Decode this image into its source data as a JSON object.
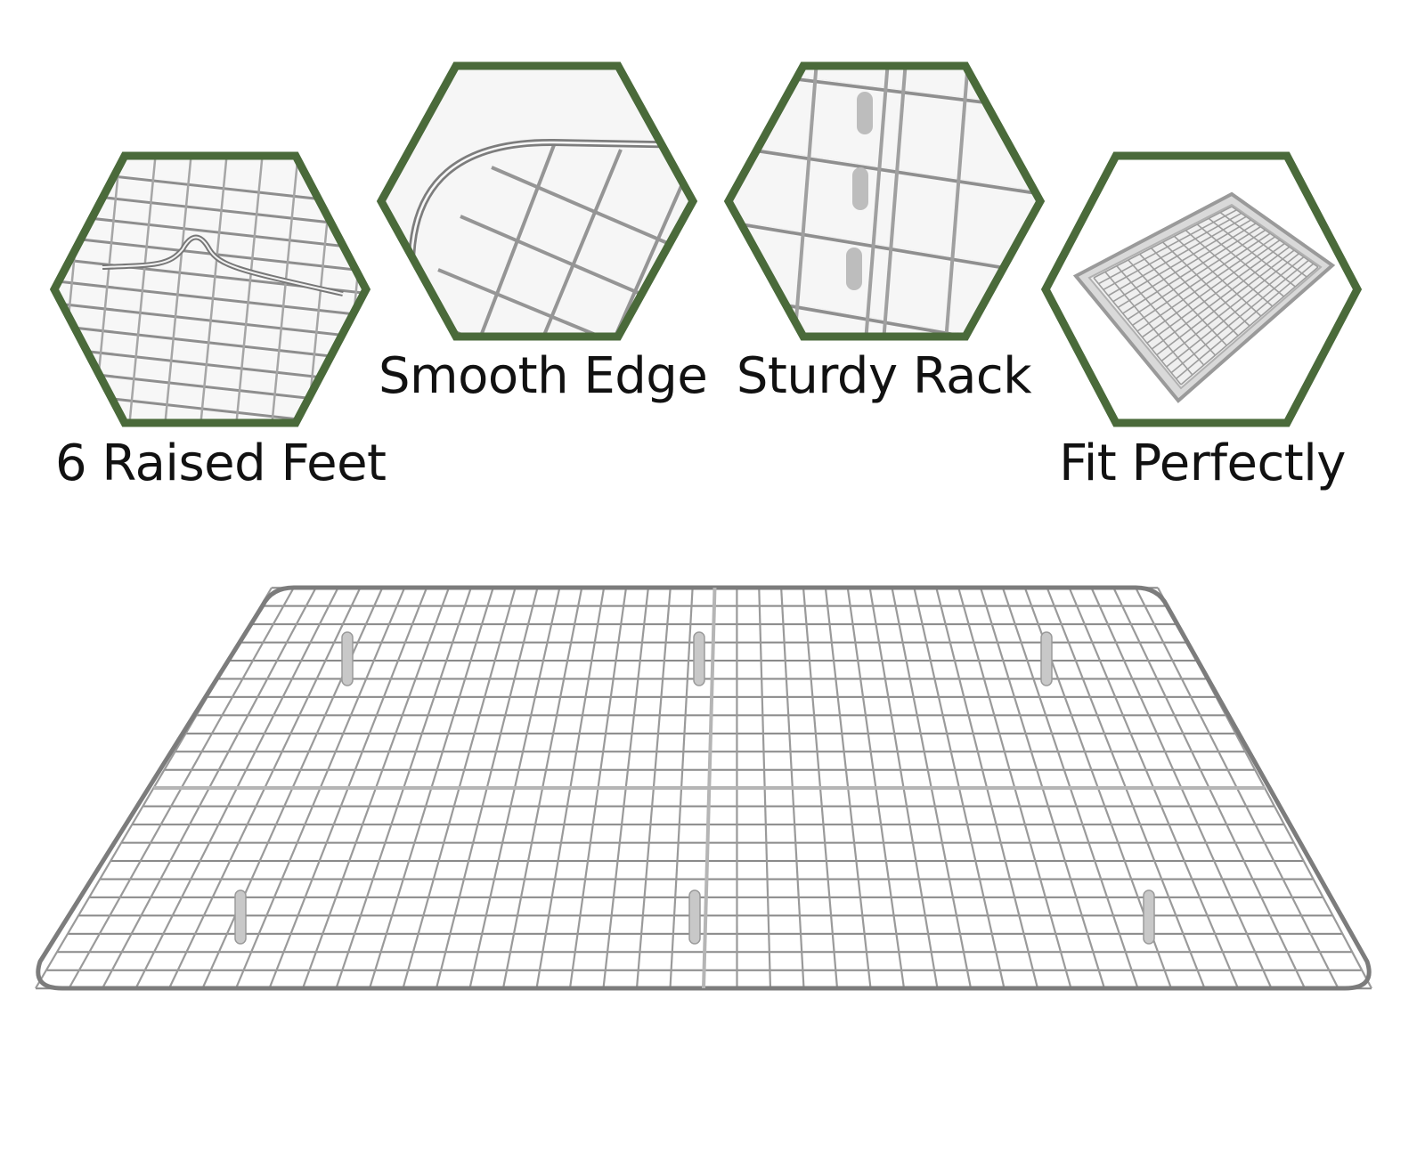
{
  "features": [
    {
      "id": "raised-feet",
      "label": "6 Raised Feet"
    },
    {
      "id": "smooth-edge",
      "label": "Smooth Edge"
    },
    {
      "id": "sturdy-rack",
      "label": "Sturdy Rack"
    },
    {
      "id": "fit-perfectly",
      "label": "Fit Perfectly"
    }
  ],
  "colors": {
    "hexagon_border": "#4a6a3a",
    "wire": "#9a9a9a",
    "wire_highlight": "#f4f4f4",
    "background": "#ffffff"
  }
}
